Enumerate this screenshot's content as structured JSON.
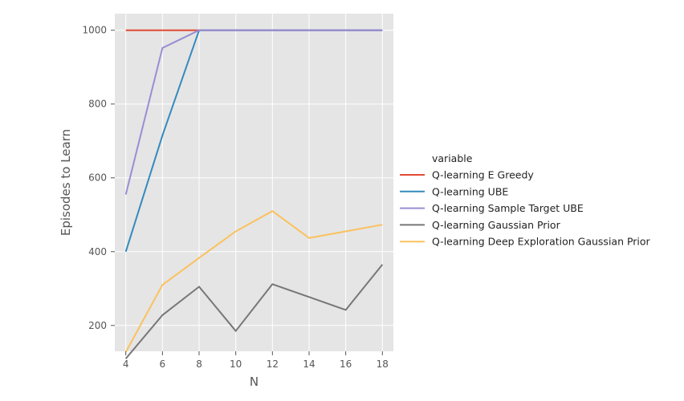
{
  "chart_data": {
    "type": "line",
    "title": "",
    "xlabel": "N",
    "ylabel": "Episodes to Learn",
    "x": [
      4,
      6,
      8,
      10,
      12,
      14,
      16,
      18
    ],
    "xticks": [
      "4",
      "6",
      "8",
      "10",
      "12",
      "14",
      "16",
      "18"
    ],
    "yticks": [
      "200",
      "400",
      "600",
      "800",
      "1000"
    ],
    "xlim": [
      3.4,
      18.6
    ],
    "ylim": [
      130,
      1045
    ],
    "grid": true,
    "legend_title": "variable",
    "legend_placement": "right",
    "series": [
      {
        "name": "Q-learning E Greedy",
        "color": "#e24a33",
        "values": [
          1000,
          1000,
          1000,
          1000,
          1000,
          1000,
          1000,
          1000
        ]
      },
      {
        "name": "Q-learning UBE",
        "color": "#348abd",
        "values": [
          400,
          715,
          1000,
          1000,
          1000,
          1000,
          1000,
          1000
        ]
      },
      {
        "name": "Q-learning Sample Target UBE",
        "color": "#988ed5",
        "values": [
          555,
          952,
          1000,
          1000,
          1000,
          1000,
          1000,
          1000
        ]
      },
      {
        "name": "Q-learning Gaussian Prior",
        "color": "#777777",
        "values": [
          110,
          228,
          305,
          185,
          312,
          277,
          242,
          365
        ]
      },
      {
        "name": "Q-learning Deep Exploration Gaussian Prior",
        "color": "#fbc15e",
        "values": [
          128,
          310,
          383,
          455,
          510,
          437,
          455,
          473
        ]
      }
    ]
  }
}
